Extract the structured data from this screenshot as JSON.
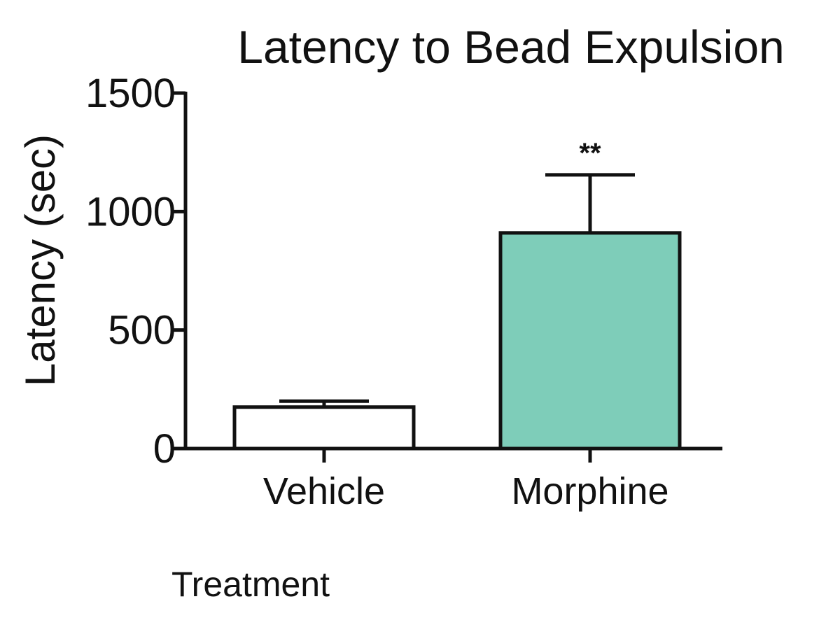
{
  "chart_data": {
    "type": "bar",
    "title": "Latency to Bead Expulsion",
    "ylabel": "Latency (sec)",
    "xlabel": "Treatment",
    "categories": [
      "Vehicle",
      "Morphine"
    ],
    "values": [
      175,
      910
    ],
    "errors": [
      25,
      245
    ],
    "bar_colors": [
      "#ffffff",
      "#7ecdb9"
    ],
    "annotations": [
      "",
      "**"
    ],
    "ylim": [
      0,
      1500
    ],
    "yticks": [
      0,
      500,
      1000,
      1500
    ],
    "ytick_labels": [
      "0",
      "500",
      "1000",
      "1500"
    ],
    "grid": false
  }
}
